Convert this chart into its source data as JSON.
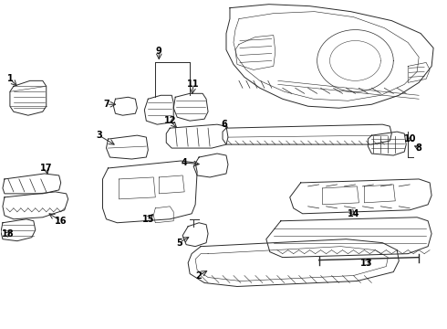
{
  "bg_color": "#ffffff",
  "line_color": "#2a2a2a",
  "label_color": "#000000",
  "fig_width": 4.9,
  "fig_height": 3.6,
  "dpi": 100,
  "label_fs": 7.0,
  "lw": 0.7
}
